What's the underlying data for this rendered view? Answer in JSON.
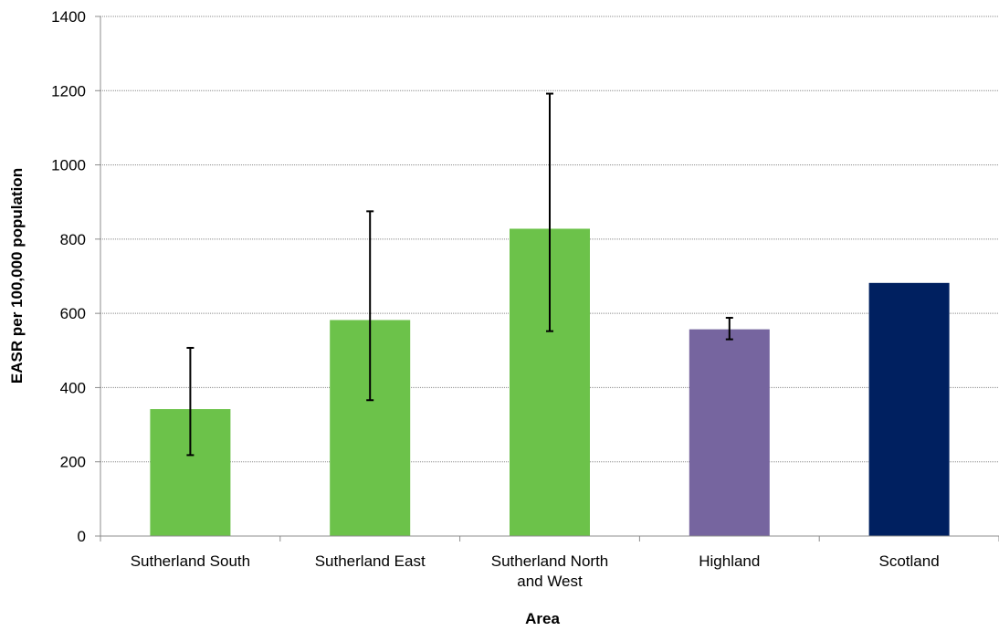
{
  "chart_data": {
    "type": "bar",
    "title": "",
    "xlabel": "Area",
    "ylabel": "EASR per 100,000 population",
    "ylim": [
      0,
      1400
    ],
    "yticks": [
      0,
      200,
      400,
      600,
      800,
      1000,
      1200,
      1400
    ],
    "grid": true,
    "legend": "none",
    "categories": [
      [
        "Sutherland South"
      ],
      [
        "Sutherland East"
      ],
      [
        "Sutherland North",
        "and West"
      ],
      [
        "Highland"
      ],
      [
        "Scotland"
      ]
    ],
    "values": [
      342,
      582,
      828,
      557,
      682
    ],
    "error_low": [
      218,
      366,
      552,
      530,
      null
    ],
    "error_high": [
      507,
      875,
      1192,
      588,
      null
    ],
    "colors": [
      "#6cc24a",
      "#6cc24a",
      "#6cc24a",
      "#76659f",
      "#002060"
    ]
  }
}
